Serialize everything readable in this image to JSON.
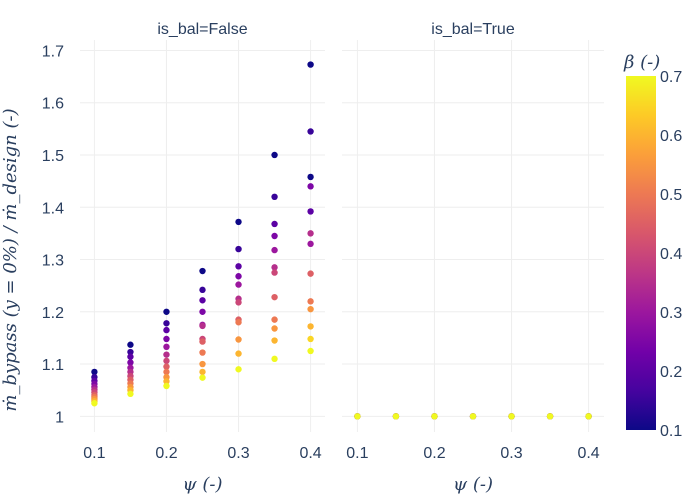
{
  "chart_data": {
    "type": "scatter",
    "facets": [
      {
        "title": "is_bal=False",
        "points": [
          {
            "x": 0.1,
            "y": 1.085,
            "beta": 0.1
          },
          {
            "x": 0.1,
            "y": 1.075,
            "beta": 0.15
          },
          {
            "x": 0.1,
            "y": 1.068,
            "beta": 0.2
          },
          {
            "x": 0.1,
            "y": 1.062,
            "beta": 0.25
          },
          {
            "x": 0.1,
            "y": 1.056,
            "beta": 0.3
          },
          {
            "x": 0.1,
            "y": 1.051,
            "beta": 0.35
          },
          {
            "x": 0.1,
            "y": 1.046,
            "beta": 0.4
          },
          {
            "x": 0.1,
            "y": 1.041,
            "beta": 0.45
          },
          {
            "x": 0.1,
            "y": 1.037,
            "beta": 0.5
          },
          {
            "x": 0.1,
            "y": 1.033,
            "beta": 0.55
          },
          {
            "x": 0.1,
            "y": 1.029,
            "beta": 0.6
          },
          {
            "x": 0.1,
            "y": 1.025,
            "beta": 0.7
          },
          {
            "x": 0.15,
            "y": 1.137,
            "beta": 0.1
          },
          {
            "x": 0.15,
            "y": 1.123,
            "beta": 0.15
          },
          {
            "x": 0.15,
            "y": 1.114,
            "beta": 0.2
          },
          {
            "x": 0.15,
            "y": 1.103,
            "beta": 0.25
          },
          {
            "x": 0.15,
            "y": 1.093,
            "beta": 0.3
          },
          {
            "x": 0.15,
            "y": 1.085,
            "beta": 0.35
          },
          {
            "x": 0.15,
            "y": 1.077,
            "beta": 0.4
          },
          {
            "x": 0.15,
            "y": 1.07,
            "beta": 0.45
          },
          {
            "x": 0.15,
            "y": 1.063,
            "beta": 0.5
          },
          {
            "x": 0.15,
            "y": 1.056,
            "beta": 0.55
          },
          {
            "x": 0.15,
            "y": 1.05,
            "beta": 0.6
          },
          {
            "x": 0.15,
            "y": 1.043,
            "beta": 0.7
          },
          {
            "x": 0.2,
            "y": 1.2,
            "beta": 0.1
          },
          {
            "x": 0.2,
            "y": 1.178,
            "beta": 0.15
          },
          {
            "x": 0.2,
            "y": 1.165,
            "beta": 0.2
          },
          {
            "x": 0.2,
            "y": 1.148,
            "beta": 0.25
          },
          {
            "x": 0.2,
            "y": 1.133,
            "beta": 0.3
          },
          {
            "x": 0.2,
            "y": 1.118,
            "beta": 0.35
          },
          {
            "x": 0.2,
            "y": 1.106,
            "beta": 0.4
          },
          {
            "x": 0.2,
            "y": 1.095,
            "beta": 0.45
          },
          {
            "x": 0.2,
            "y": 1.085,
            "beta": 0.5
          },
          {
            "x": 0.2,
            "y": 1.075,
            "beta": 0.55
          },
          {
            "x": 0.2,
            "y": 1.067,
            "beta": 0.6
          },
          {
            "x": 0.2,
            "y": 1.058,
            "beta": 0.7
          },
          {
            "x": 0.25,
            "y": 1.278,
            "beta": 0.1
          },
          {
            "x": 0.25,
            "y": 1.242,
            "beta": 0.15
          },
          {
            "x": 0.25,
            "y": 1.222,
            "beta": 0.2
          },
          {
            "x": 0.25,
            "y": 1.2,
            "beta": 0.25
          },
          {
            "x": 0.25,
            "y": 1.175,
            "beta": 0.3
          },
          {
            "x": 0.25,
            "y": 1.173,
            "beta": 0.35
          },
          {
            "x": 0.25,
            "y": 1.148,
            "beta": 0.4
          },
          {
            "x": 0.25,
            "y": 1.143,
            "beta": 0.45
          },
          {
            "x": 0.25,
            "y": 1.122,
            "beta": 0.5
          },
          {
            "x": 0.25,
            "y": 1.1,
            "beta": 0.55
          },
          {
            "x": 0.25,
            "y": 1.085,
            "beta": 0.6
          },
          {
            "x": 0.25,
            "y": 1.074,
            "beta": 0.7
          },
          {
            "x": 0.3,
            "y": 1.372,
            "beta": 0.1
          },
          {
            "x": 0.3,
            "y": 1.32,
            "beta": 0.15
          },
          {
            "x": 0.3,
            "y": 1.287,
            "beta": 0.2
          },
          {
            "x": 0.3,
            "y": 1.268,
            "beta": 0.25
          },
          {
            "x": 0.3,
            "y": 1.252,
            "beta": 0.3
          },
          {
            "x": 0.3,
            "y": 1.225,
            "beta": 0.35
          },
          {
            "x": 0.3,
            "y": 1.218,
            "beta": 0.4
          },
          {
            "x": 0.3,
            "y": 1.185,
            "beta": 0.45
          },
          {
            "x": 0.3,
            "y": 1.18,
            "beta": 0.5
          },
          {
            "x": 0.3,
            "y": 1.147,
            "beta": 0.55
          },
          {
            "x": 0.3,
            "y": 1.12,
            "beta": 0.6
          },
          {
            "x": 0.3,
            "y": 1.09,
            "beta": 0.7
          },
          {
            "x": 0.35,
            "y": 1.5,
            "beta": 0.1
          },
          {
            "x": 0.35,
            "y": 1.42,
            "beta": 0.15
          },
          {
            "x": 0.35,
            "y": 1.368,
            "beta": 0.2
          },
          {
            "x": 0.35,
            "y": 1.345,
            "beta": 0.25
          },
          {
            "x": 0.35,
            "y": 1.318,
            "beta": 0.3
          },
          {
            "x": 0.35,
            "y": 1.285,
            "beta": 0.35
          },
          {
            "x": 0.35,
            "y": 1.275,
            "beta": 0.4
          },
          {
            "x": 0.35,
            "y": 1.228,
            "beta": 0.45
          },
          {
            "x": 0.35,
            "y": 1.185,
            "beta": 0.5
          },
          {
            "x": 0.35,
            "y": 1.168,
            "beta": 0.55
          },
          {
            "x": 0.35,
            "y": 1.145,
            "beta": 0.6
          },
          {
            "x": 0.35,
            "y": 1.11,
            "beta": 0.7
          },
          {
            "x": 0.4,
            "y": 1.673,
            "beta": 0.1
          },
          {
            "x": 0.4,
            "y": 1.545,
            "beta": 0.15
          },
          {
            "x": 0.4,
            "y": 1.458,
            "beta": 0.1
          },
          {
            "x": 0.4,
            "y": 1.44,
            "beta": 0.25
          },
          {
            "x": 0.4,
            "y": 1.392,
            "beta": 0.2
          },
          {
            "x": 0.4,
            "y": 1.35,
            "beta": 0.35
          },
          {
            "x": 0.4,
            "y": 1.33,
            "beta": 0.3
          },
          {
            "x": 0.4,
            "y": 1.273,
            "beta": 0.45
          },
          {
            "x": 0.4,
            "y": 1.22,
            "beta": 0.5
          },
          {
            "x": 0.4,
            "y": 1.205,
            "beta": 0.55
          },
          {
            "x": 0.4,
            "y": 1.172,
            "beta": 0.6
          },
          {
            "x": 0.4,
            "y": 1.148,
            "beta": 0.65
          },
          {
            "x": 0.4,
            "y": 1.125,
            "beta": 0.7
          }
        ]
      },
      {
        "title": "is_bal=True",
        "points": [
          {
            "x": 0.1,
            "y": 1.0,
            "beta": 0.1
          },
          {
            "x": 0.1,
            "y": 1.0,
            "beta": 0.4
          },
          {
            "x": 0.1,
            "y": 1.0,
            "beta": 0.7
          },
          {
            "x": 0.15,
            "y": 1.0,
            "beta": 0.1
          },
          {
            "x": 0.15,
            "y": 1.0,
            "beta": 0.4
          },
          {
            "x": 0.15,
            "y": 1.0,
            "beta": 0.7
          },
          {
            "x": 0.2,
            "y": 1.0,
            "beta": 0.1
          },
          {
            "x": 0.2,
            "y": 1.0,
            "beta": 0.4
          },
          {
            "x": 0.2,
            "y": 1.0,
            "beta": 0.7
          },
          {
            "x": 0.25,
            "y": 1.0,
            "beta": 0.1
          },
          {
            "x": 0.25,
            "y": 1.0,
            "beta": 0.4
          },
          {
            "x": 0.25,
            "y": 1.0,
            "beta": 0.7
          },
          {
            "x": 0.3,
            "y": 1.0,
            "beta": 0.1
          },
          {
            "x": 0.3,
            "y": 1.0,
            "beta": 0.4
          },
          {
            "x": 0.3,
            "y": 1.0,
            "beta": 0.7
          },
          {
            "x": 0.35,
            "y": 1.0,
            "beta": 0.1
          },
          {
            "x": 0.35,
            "y": 1.0,
            "beta": 0.4
          },
          {
            "x": 0.35,
            "y": 1.0,
            "beta": 0.7
          },
          {
            "x": 0.4,
            "y": 1.0,
            "beta": 0.1
          },
          {
            "x": 0.4,
            "y": 1.0,
            "beta": 0.4
          },
          {
            "x": 0.4,
            "y": 1.0,
            "beta": 0.7
          }
        ]
      }
    ],
    "xlabel": "ψ (-)",
    "ylabel": "ṁ_bypass (y = 0%) / ṁ_design (-)",
    "xlim": [
      0.08,
      0.42
    ],
    "ylim": [
      0.97,
      1.72
    ],
    "xticks": [
      0.1,
      0.2,
      0.3,
      0.4
    ],
    "xtick_labels": [
      "0.1",
      "0.2",
      "0.3",
      "0.4"
    ],
    "yticks": [
      1,
      1.1,
      1.2,
      1.3,
      1.4,
      1.5,
      1.6,
      1.7
    ],
    "ytick_labels": [
      "1",
      "1.1",
      "1.2",
      "1.3",
      "1.4",
      "1.5",
      "1.6",
      "1.7"
    ],
    "colorbar": {
      "title": "β (-)",
      "range": [
        0.1,
        0.7
      ],
      "ticks": [
        0.1,
        0.2,
        0.3,
        0.4,
        0.5,
        0.6,
        0.7
      ],
      "tick_labels": [
        "0.1",
        "0.2",
        "0.3",
        "0.4",
        "0.5",
        "0.6",
        "0.7"
      ],
      "colorscale": [
        "#0d0887",
        "#46039f",
        "#7201a8",
        "#9c179e",
        "#bd3786",
        "#d8576b",
        "#ed7953",
        "#fb9f3a",
        "#fdca26",
        "#f0f921"
      ]
    },
    "grid": true
  }
}
